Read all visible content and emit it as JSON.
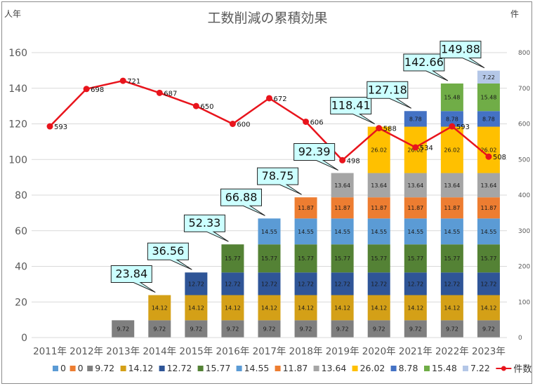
{
  "chart_data": {
    "type": "bar",
    "subtype": "stacked-bar-with-line",
    "title": "工数削減の累積効果",
    "ylabel_left": "人年",
    "ylabel_right": "件",
    "ylim_left": [
      0,
      160
    ],
    "yticks_left": [
      0,
      20,
      40,
      60,
      80,
      100,
      120,
      140,
      160
    ],
    "ylim_right": [
      0,
      800
    ],
    "yticks_right": [
      0,
      100,
      200,
      300,
      400,
      500,
      600,
      700,
      800
    ],
    "grid": true,
    "legend_position": "bottom",
    "categories": [
      "2011年",
      "2012年",
      "2013年",
      "2014年",
      "2015年",
      "2016年",
      "2017年",
      "2018年",
      "2019年",
      "2020年",
      "2021年",
      "2022年",
      "2023年"
    ],
    "series": [
      {
        "name": "0",
        "color": "#5b9bd5",
        "values": [
          0,
          0,
          0,
          0,
          0,
          0,
          0,
          0,
          0,
          0,
          0,
          0,
          0
        ]
      },
      {
        "name": "0",
        "color": "#ed7d31",
        "values": [
          0,
          0,
          0,
          0,
          0,
          0,
          0,
          0,
          0,
          0,
          0,
          0,
          0
        ]
      },
      {
        "name": "9.72",
        "color": "#7f7f7f",
        "values": [
          null,
          null,
          9.72,
          9.72,
          9.72,
          9.72,
          9.72,
          9.72,
          9.72,
          9.72,
          9.72,
          9.72,
          9.72
        ]
      },
      {
        "name": "14.12",
        "color": "#d4a017",
        "values": [
          null,
          null,
          null,
          14.12,
          14.12,
          14.12,
          14.12,
          14.12,
          14.12,
          14.12,
          14.12,
          14.12,
          14.12
        ]
      },
      {
        "name": "12.72",
        "color": "#2f5597",
        "values": [
          null,
          null,
          null,
          null,
          12.72,
          12.72,
          12.72,
          12.72,
          12.72,
          12.72,
          12.72,
          12.72,
          12.72
        ]
      },
      {
        "name": "15.77",
        "color": "#548235",
        "values": [
          null,
          null,
          null,
          null,
          null,
          15.77,
          15.77,
          15.77,
          15.77,
          15.77,
          15.77,
          15.77,
          15.77
        ]
      },
      {
        "name": "14.55",
        "color": "#5b9bd5",
        "values": [
          null,
          null,
          null,
          null,
          null,
          null,
          14.55,
          14.55,
          14.55,
          14.55,
          14.55,
          14.55,
          14.55
        ]
      },
      {
        "name": "11.87",
        "color": "#ed7d31",
        "values": [
          null,
          null,
          null,
          null,
          null,
          null,
          null,
          11.87,
          11.87,
          11.87,
          11.87,
          11.87,
          11.87
        ]
      },
      {
        "name": "13.64",
        "color": "#a5a5a5",
        "values": [
          null,
          null,
          null,
          null,
          null,
          null,
          null,
          null,
          13.64,
          13.64,
          13.64,
          13.64,
          13.64
        ]
      },
      {
        "name": "26.02",
        "color": "#ffc000",
        "values": [
          null,
          null,
          null,
          null,
          null,
          null,
          null,
          null,
          null,
          26.02,
          26.02,
          26.02,
          26.02
        ]
      },
      {
        "name": "8.78",
        "color": "#4472c4",
        "values": [
          null,
          null,
          null,
          null,
          null,
          null,
          null,
          null,
          null,
          null,
          8.78,
          8.78,
          8.78
        ]
      },
      {
        "name": "15.48",
        "color": "#70ad47",
        "values": [
          null,
          null,
          null,
          null,
          null,
          null,
          null,
          null,
          null,
          null,
          null,
          15.48,
          15.48
        ]
      },
      {
        "name": "7.22",
        "color": "#b4c7e7",
        "values": [
          null,
          null,
          null,
          null,
          null,
          null,
          null,
          null,
          null,
          null,
          null,
          null,
          7.22
        ]
      }
    ],
    "line_series": {
      "name": "件数",
      "color": "#e8141c",
      "axis": "right",
      "values": [
        593,
        698,
        721,
        687,
        650,
        600,
        672,
        606,
        498,
        588,
        534,
        593,
        508
      ]
    },
    "totals": [
      null,
      null,
      null,
      23.84,
      36.56,
      52.33,
      66.88,
      78.75,
      92.39,
      118.41,
      127.18,
      142.66,
      149.88
    ],
    "callout_color": "#ccffff"
  }
}
